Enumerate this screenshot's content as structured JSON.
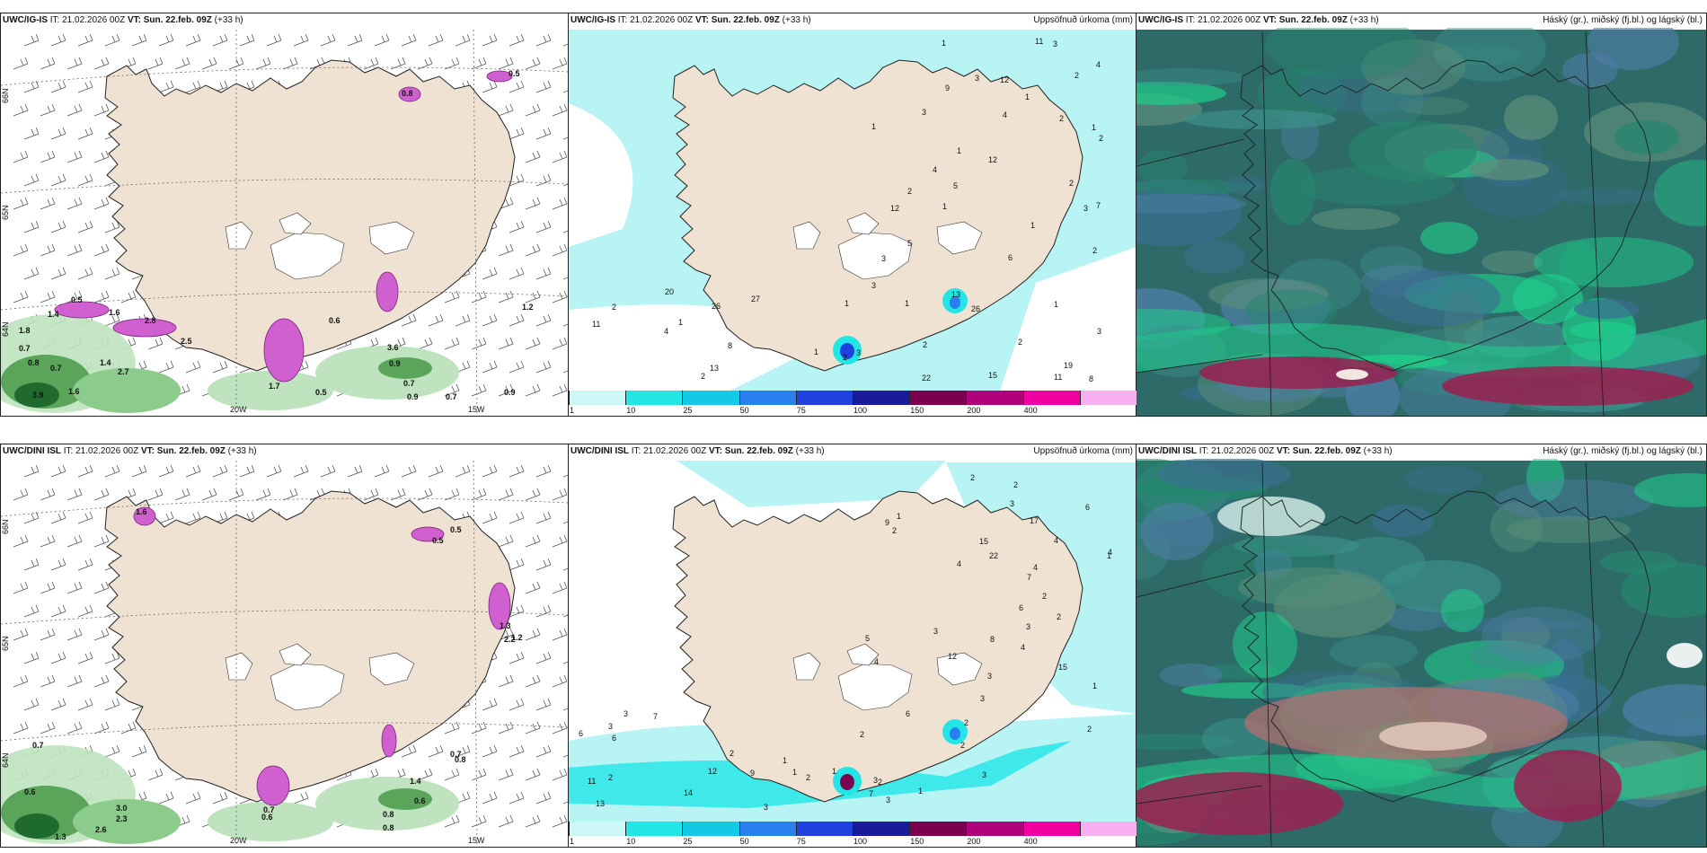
{
  "panels": [
    {
      "model": "UWC/IG-IS",
      "it": "IT: 21.02.2026 00Z",
      "vt_label": "VT:",
      "vt": "Sun. 22.feb. 09Z",
      "lead": "(+33 h)",
      "title": "",
      "kind": "wind",
      "lat_labels": [
        "66N",
        "65N",
        "64N"
      ],
      "lon_labels": [
        "20W",
        "15W"
      ],
      "values": [
        "0.5",
        "1.4",
        "1.8",
        "0.7",
        "0.8",
        "0.7",
        "1.4",
        "2.7",
        "3.9",
        "1.6",
        "2.8",
        "1.6",
        "2.5",
        "1.7",
        "0.5",
        "0.6",
        "3.6",
        "0.9",
        "0.7",
        "0.9",
        "0.7",
        "0.9",
        "1.2",
        "0.8",
        "0.5"
      ]
    },
    {
      "model": "UWC/IG-IS",
      "it": "IT: 21.02.2026 00Z",
      "vt_label": "VT:",
      "vt": "Sun. 22.feb. 09Z",
      "lead": "(+33 h)",
      "title": "Uppsöfnuð úrkoma (mm)",
      "kind": "precip",
      "values": [
        "9",
        "1",
        "1",
        "2",
        "1",
        "7",
        "5",
        "11",
        "3",
        "2",
        "3",
        "2",
        "2",
        "1",
        "12",
        "12",
        "4",
        "1",
        "1",
        "3",
        "2",
        "12",
        "5",
        "2",
        "4",
        "3",
        "3",
        "1",
        "6",
        "4",
        "2",
        "8",
        "4",
        "3",
        "1",
        "11",
        "3",
        "2",
        "1",
        "2",
        "22",
        "2",
        "1",
        "3",
        "19",
        "20",
        "1",
        "26",
        "27",
        "13",
        "11",
        "26",
        "15",
        "13",
        "8",
        "2",
        "1"
      ]
    },
    {
      "model": "UWC/IG-IS",
      "it": "IT: 21.02.2026 00Z",
      "vt_label": "VT:",
      "vt": "Sun. 22.feb. 09Z",
      "lead": "(+33 h)",
      "title": "Háský (gr.), miðský (fj.bl.) og lágský (bl.)",
      "kind": "cloud"
    },
    {
      "model": "UWC/DINI ISL",
      "it": "IT: 21.02.2026 00Z",
      "vt_label": "VT:",
      "vt": "Sun. 22.feb. 09Z",
      "lead": "(+33 h)",
      "title": "",
      "kind": "wind",
      "lat_labels": [
        "66N",
        "65N",
        "64N"
      ],
      "lon_labels": [
        "20W",
        "15W"
      ],
      "values": [
        "1.6",
        "0.5",
        "0.5",
        "1.3",
        "2.2",
        "1.2",
        "0.7",
        "0.6",
        "2.3",
        "3.0",
        "2.6",
        "1.3",
        "0.7",
        "0.6",
        "0.8",
        "0.8",
        "0.6",
        "0.7",
        "1.4",
        "0.8"
      ]
    },
    {
      "model": "UWC/DINI ISL",
      "it": "IT: 21.02.2026 00Z",
      "vt_label": "VT:",
      "vt": "Sun. 22.feb. 09Z",
      "lead": "(+33 h)",
      "title": "Uppsöfnuð úrkoma (mm)",
      "kind": "precip",
      "values": [
        "2",
        "3",
        "3",
        "7",
        "4",
        "4",
        "4",
        "3",
        "5",
        "9",
        "6",
        "8",
        "2",
        "2",
        "6",
        "15",
        "12",
        "22",
        "15",
        "17",
        "3",
        "3",
        "2",
        "4",
        "1",
        "1",
        "1",
        "4",
        "4",
        "2",
        "3",
        "3",
        "1",
        "1",
        "3",
        "2",
        "6",
        "2",
        "2",
        "2",
        "12",
        "11",
        "3",
        "6",
        "7",
        "7",
        "9",
        "6",
        "2",
        "3",
        "2",
        "1",
        "1",
        "2",
        "14",
        "13",
        "2",
        "3"
      ]
    },
    {
      "model": "UWC/DINI ISL",
      "it": "IT: 21.02.2026 00Z",
      "vt_label": "VT:",
      "vt": "Sun. 22.feb. 09Z",
      "lead": "(+33 h)",
      "title": "Háský (gr.), miðský (fj.bl.) og lágský (bl.)",
      "kind": "cloud"
    }
  ],
  "colorbar": {
    "ticks": [
      "1",
      "10",
      "25",
      "50",
      "75",
      "100",
      "150",
      "200",
      "400"
    ],
    "colors": [
      "#cdf7f7",
      "#22e6e6",
      "#14c8e6",
      "#2a7ff0",
      "#2040e0",
      "#1a1a9a",
      "#7a0050",
      "#b0007a",
      "#f000a0",
      "#f8b0f0"
    ]
  },
  "colors": {
    "land": "#efe2d2",
    "sea": "#ffffff",
    "precip_light": "#b8f4f4",
    "precip_mid": "#22e6e6",
    "green_dark": "#1f6b2e",
    "green_light": "#bfe3bf",
    "purple": "#d060d0",
    "cloud_bg": "#2e6a68",
    "cloud_green": "#1fcf8c",
    "cloud_red": "#9a2050"
  }
}
